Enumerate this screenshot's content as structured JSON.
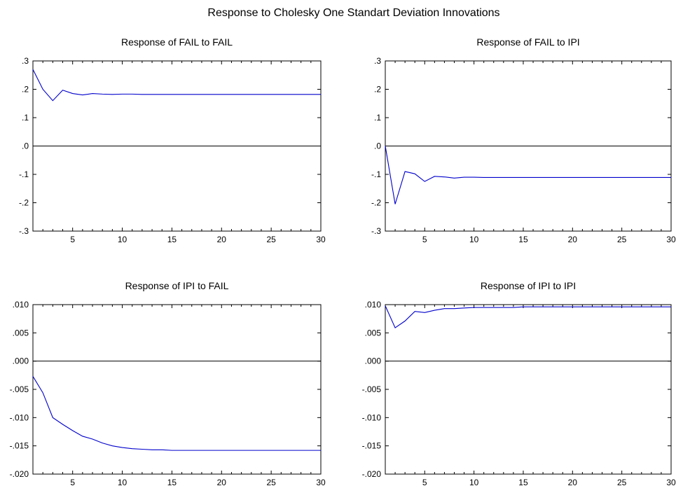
{
  "figure": {
    "title": "Response to Cholesky One Standart Deviation Innovations"
  },
  "colors": {
    "line": "#0000cc",
    "zero_line": "#000000",
    "frame": "#000000",
    "background": "#ffffff"
  },
  "chart_data": [
    {
      "type": "line",
      "title": "Response of FAIL to FAIL",
      "xlabel": "",
      "ylabel": "",
      "x": [
        1,
        2,
        3,
        4,
        5,
        6,
        7,
        8,
        9,
        10,
        11,
        12,
        13,
        14,
        15,
        16,
        17,
        18,
        19,
        20,
        21,
        22,
        23,
        24,
        25,
        26,
        27,
        28,
        29,
        30
      ],
      "xlim": [
        1,
        30
      ],
      "xticks": [
        5,
        10,
        15,
        20,
        25,
        30
      ],
      "xtick_labels": [
        "5",
        "10",
        "15",
        "20",
        "25",
        "30"
      ],
      "ylim": [
        -0.3,
        0.3
      ],
      "yticks": [
        -0.3,
        -0.2,
        -0.1,
        0.0,
        0.1,
        0.2,
        0.3
      ],
      "ytick_labels": [
        "-.3",
        "-.2",
        "-.1",
        ".0",
        ".1",
        ".2",
        ".3"
      ],
      "zero_line": true,
      "grid": false,
      "series": [
        {
          "values": [
            0.27,
            0.2,
            0.16,
            0.197,
            0.185,
            0.18,
            0.185,
            0.183,
            0.182,
            0.183,
            0.183,
            0.182,
            0.182,
            0.182,
            0.182,
            0.182,
            0.182,
            0.182,
            0.182,
            0.182,
            0.182,
            0.182,
            0.182,
            0.182,
            0.182,
            0.182,
            0.182,
            0.182,
            0.182,
            0.182
          ]
        }
      ]
    },
    {
      "type": "line",
      "title": "Response of FAIL to IPI",
      "xlabel": "",
      "ylabel": "",
      "x": [
        1,
        2,
        3,
        4,
        5,
        6,
        7,
        8,
        9,
        10,
        11,
        12,
        13,
        14,
        15,
        16,
        17,
        18,
        19,
        20,
        21,
        22,
        23,
        24,
        25,
        26,
        27,
        28,
        29,
        30
      ],
      "xlim": [
        1,
        30
      ],
      "xticks": [
        5,
        10,
        15,
        20,
        25,
        30
      ],
      "xtick_labels": [
        "5",
        "10",
        "15",
        "20",
        "25",
        "30"
      ],
      "ylim": [
        -0.3,
        0.3
      ],
      "yticks": [
        -0.3,
        -0.2,
        -0.1,
        0.0,
        0.1,
        0.2,
        0.3
      ],
      "ytick_labels": [
        "-.3",
        "-.2",
        "-.1",
        ".0",
        ".1",
        ".2",
        ".3"
      ],
      "zero_line": true,
      "grid": false,
      "series": [
        {
          "values": [
            0.0,
            -0.205,
            -0.09,
            -0.098,
            -0.125,
            -0.107,
            -0.109,
            -0.113,
            -0.11,
            -0.11,
            -0.111,
            -0.111,
            -0.111,
            -0.111,
            -0.111,
            -0.111,
            -0.111,
            -0.111,
            -0.111,
            -0.111,
            -0.111,
            -0.111,
            -0.111,
            -0.111,
            -0.111,
            -0.111,
            -0.111,
            -0.111,
            -0.111,
            -0.111
          ]
        }
      ]
    },
    {
      "type": "line",
      "title": "Response of IPI to FAIL",
      "xlabel": "",
      "ylabel": "",
      "x": [
        1,
        2,
        3,
        4,
        5,
        6,
        7,
        8,
        9,
        10,
        11,
        12,
        13,
        14,
        15,
        16,
        17,
        18,
        19,
        20,
        21,
        22,
        23,
        24,
        25,
        26,
        27,
        28,
        29,
        30
      ],
      "xlim": [
        1,
        30
      ],
      "xticks": [
        5,
        10,
        15,
        20,
        25,
        30
      ],
      "xtick_labels": [
        "5",
        "10",
        "15",
        "20",
        "25",
        "30"
      ],
      "ylim": [
        -0.02,
        0.01
      ],
      "yticks": [
        -0.02,
        -0.015,
        -0.01,
        -0.005,
        0.0,
        0.005,
        0.01
      ],
      "ytick_labels": [
        "-.020",
        "-.015",
        "-.010",
        "-.005",
        ".000",
        ".005",
        ".010"
      ],
      "zero_line": true,
      "grid": false,
      "series": [
        {
          "values": [
            -0.0027,
            -0.0056,
            -0.01,
            -0.0112,
            -0.0123,
            -0.0133,
            -0.0138,
            -0.0145,
            -0.015,
            -0.0153,
            -0.0155,
            -0.0156,
            -0.0157,
            -0.0157,
            -0.0158,
            -0.0158,
            -0.0158,
            -0.0158,
            -0.0158,
            -0.0158,
            -0.0158,
            -0.0158,
            -0.0158,
            -0.0158,
            -0.0158,
            -0.0158,
            -0.0158,
            -0.0158,
            -0.0158,
            -0.0158
          ]
        }
      ]
    },
    {
      "type": "line",
      "title": "Response of IPI to IPI",
      "xlabel": "",
      "ylabel": "",
      "x": [
        1,
        2,
        3,
        4,
        5,
        6,
        7,
        8,
        9,
        10,
        11,
        12,
        13,
        14,
        15,
        16,
        17,
        18,
        19,
        20,
        21,
        22,
        23,
        24,
        25,
        26,
        27,
        28,
        29,
        30
      ],
      "xlim": [
        1,
        30
      ],
      "xticks": [
        5,
        10,
        15,
        20,
        25,
        30
      ],
      "xtick_labels": [
        "5",
        "10",
        "15",
        "20",
        "25",
        "30"
      ],
      "ylim": [
        -0.02,
        0.01
      ],
      "yticks": [
        -0.02,
        -0.015,
        -0.01,
        -0.005,
        0.0,
        0.005,
        0.01
      ],
      "ytick_labels": [
        "-.020",
        "-.015",
        "-.010",
        "-.005",
        ".000",
        ".005",
        ".010"
      ],
      "zero_line": true,
      "grid": false,
      "series": [
        {
          "values": [
            0.0098,
            0.0059,
            0.0071,
            0.0088,
            0.0086,
            0.009,
            0.0093,
            0.0093,
            0.0094,
            0.0095,
            0.0095,
            0.0095,
            0.0095,
            0.0095,
            0.0096,
            0.0096,
            0.0096,
            0.0096,
            0.0096,
            0.0096,
            0.0096,
            0.0096,
            0.0096,
            0.0096,
            0.0096,
            0.0096,
            0.0096,
            0.0096,
            0.0096,
            0.0096
          ]
        }
      ]
    }
  ]
}
